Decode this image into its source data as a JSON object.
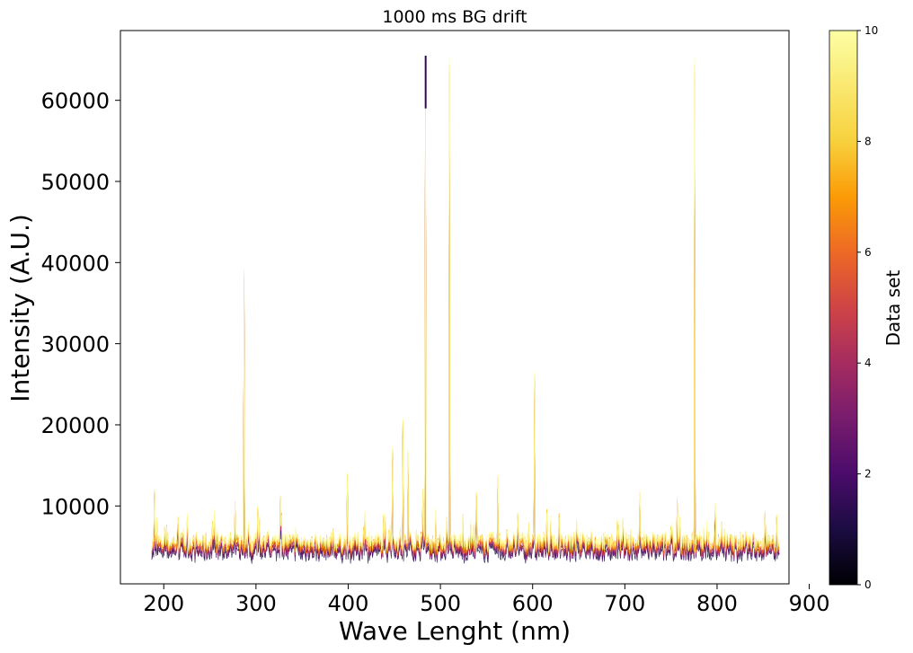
{
  "chart_data": {
    "type": "line",
    "title": "1000 ms BG drift",
    "xlabel": "Wave Lenght (nm)",
    "ylabel": "Intensity (A.U.)",
    "xlim": [
      153,
      878
    ],
    "ylim": [
      400,
      68600
    ],
    "xticks": [
      200,
      300,
      400,
      500,
      600,
      700,
      800,
      900
    ],
    "yticks": [
      10000,
      20000,
      30000,
      40000,
      50000,
      60000
    ],
    "grid": false,
    "x_range_data": [
      187,
      868
    ],
    "baseline_range": [
      4000,
      7500
    ],
    "colorscale": "inferno",
    "colorbar": {
      "label": "Data set",
      "min": 0,
      "max": 10,
      "ticks": [
        0,
        2,
        4,
        6,
        8,
        10
      ]
    },
    "series_colors": [
      "#1b0c41",
      "#4a0c6b",
      "#781c6d",
      "#a52c60",
      "#cf4446",
      "#ed6925",
      "#fb9b06",
      "#f7d13d",
      "#fcffa4"
    ],
    "peaks": [
      {
        "x": 190,
        "y": 12200
      },
      {
        "x": 277,
        "y": 10800
      },
      {
        "x": 287,
        "y": 39500
      },
      {
        "x": 302,
        "y": 10100
      },
      {
        "x": 326,
        "y": 11500
      },
      {
        "x": 399,
        "y": 14200
      },
      {
        "x": 448,
        "y": 17400
      },
      {
        "x": 459,
        "y": 20900
      },
      {
        "x": 465,
        "y": 17000
      },
      {
        "x": 481,
        "y": 12200
      },
      {
        "x": 484,
        "y": 65500
      },
      {
        "x": 510,
        "y": 65500
      },
      {
        "x": 539,
        "y": 11900
      },
      {
        "x": 562,
        "y": 14000
      },
      {
        "x": 602,
        "y": 26600
      },
      {
        "x": 716,
        "y": 11900
      },
      {
        "x": 757,
        "y": 11200
      },
      {
        "x": 776,
        "y": 65500
      },
      {
        "x": 798,
        "y": 10500
      },
      {
        "x": 852,
        "y": 9500
      }
    ]
  }
}
